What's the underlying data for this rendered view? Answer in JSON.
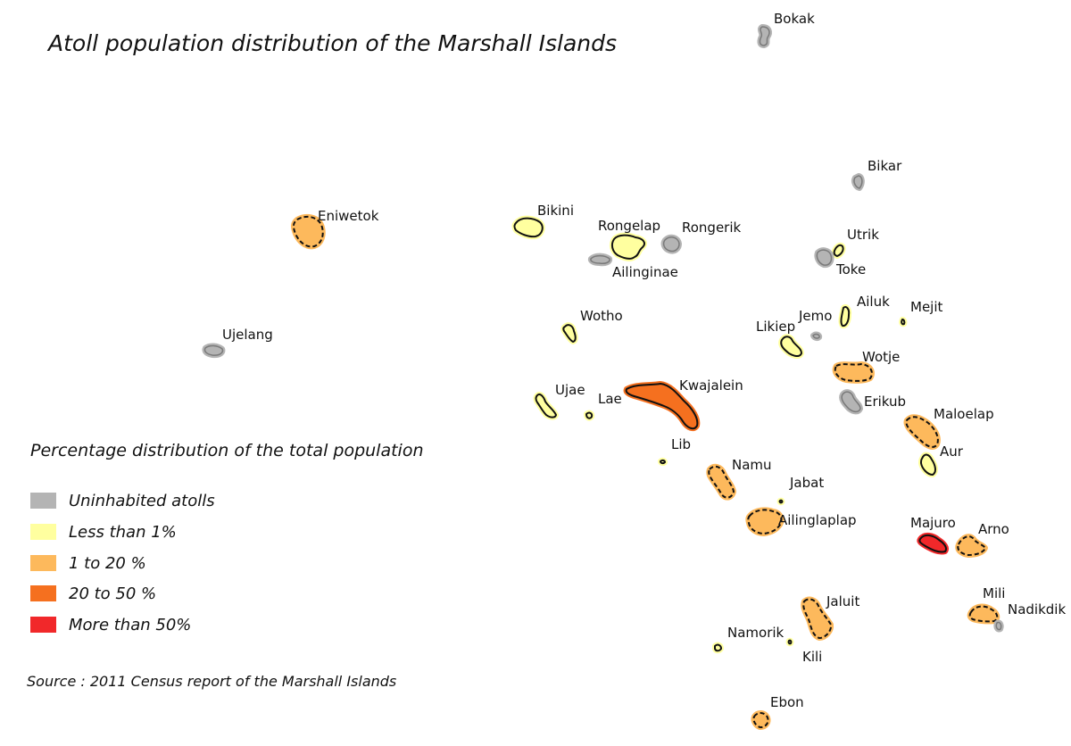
{
  "title": "Atoll population distribution of the Marshall Islands",
  "legend": {
    "title": "Percentage distribution of the total population",
    "items": [
      {
        "label": "Uninhabited atolls",
        "color": "#b4b4b4"
      },
      {
        "label": "Less than 1%",
        "color": "#ffff9f"
      },
      {
        "label": "1 to 20 %",
        "color": "#fdb95c"
      },
      {
        "label": "20 to 50 %",
        "color": "#f5701f"
      },
      {
        "label": "More than 50%",
        "color": "#f1282a"
      }
    ]
  },
  "source": "Source : 2011 Census report of the Marshall Islands",
  "atolls": [
    {
      "name": "Bokak",
      "category": 0
    },
    {
      "name": "Bikar",
      "category": 0
    },
    {
      "name": "Eniwetok",
      "category": 2
    },
    {
      "name": "Bikini",
      "category": 1
    },
    {
      "name": "Rongelap",
      "category": 1
    },
    {
      "name": "Rongerik",
      "category": 0
    },
    {
      "name": "Ailinginae",
      "category": 0
    },
    {
      "name": "Utrik",
      "category": 1
    },
    {
      "name": "Toke",
      "category": 0
    },
    {
      "name": "Ailuk",
      "category": 1
    },
    {
      "name": "Mejit",
      "category": 1
    },
    {
      "name": "Jemo",
      "category": 0
    },
    {
      "name": "Likiep",
      "category": 1
    },
    {
      "name": "Wotho",
      "category": 1
    },
    {
      "name": "Ujelang",
      "category": 0
    },
    {
      "name": "Wotje",
      "category": 2
    },
    {
      "name": "Erikub",
      "category": 0
    },
    {
      "name": "Ujae",
      "category": 1
    },
    {
      "name": "Lae",
      "category": 1
    },
    {
      "name": "Kwajalein",
      "category": 3
    },
    {
      "name": "Maloelap",
      "category": 2
    },
    {
      "name": "Lib",
      "category": 1
    },
    {
      "name": "Aur",
      "category": 1
    },
    {
      "name": "Namu",
      "category": 2
    },
    {
      "name": "Jabat",
      "category": 1
    },
    {
      "name": "Ailinglaplap",
      "category": 2
    },
    {
      "name": "Majuro",
      "category": 4
    },
    {
      "name": "Arno",
      "category": 2
    },
    {
      "name": "Jaluit",
      "category": 2
    },
    {
      "name": "Mili",
      "category": 2
    },
    {
      "name": "Nadikdik",
      "category": 0
    },
    {
      "name": "Namorik",
      "category": 1
    },
    {
      "name": "Kili",
      "category": 1
    },
    {
      "name": "Ebon",
      "category": 2
    }
  ]
}
